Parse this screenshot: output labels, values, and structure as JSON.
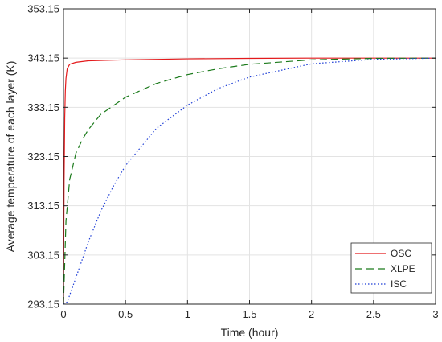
{
  "chart_data": {
    "type": "line",
    "xlabel": "Time (hour)",
    "ylabel": "Average temperature of each layer (K)",
    "xlim": [
      0,
      3
    ],
    "ylim": [
      293.15,
      353.15
    ],
    "xticks": [
      0,
      0.5,
      1,
      1.5,
      2,
      2.5,
      3
    ],
    "xtick_labels": [
      "0",
      "0.5",
      "1",
      "1.5",
      "2",
      "2.5",
      "3"
    ],
    "yticks": [
      293.15,
      303.15,
      313.15,
      323.15,
      333.15,
      343.15,
      353.15
    ],
    "ytick_labels": [
      "293.15",
      "303.15",
      "313.15",
      "323.15",
      "333.15",
      "343.15",
      "353.15"
    ],
    "grid": true,
    "legend_position": "bottom-right",
    "series": [
      {
        "name": "OSC",
        "color": "#e41a1c",
        "dash": "solid",
        "x": [
          0,
          0.005,
          0.01,
          0.015,
          0.02,
          0.03,
          0.05,
          0.1,
          0.2,
          0.5,
          1,
          1.5,
          2,
          2.5,
          3
        ],
        "y": [
          293.15,
          318.0,
          331.0,
          336.5,
          339.0,
          341.0,
          341.9,
          342.3,
          342.6,
          342.8,
          343.0,
          343.1,
          343.15,
          343.15,
          343.15
        ]
      },
      {
        "name": "XLPE",
        "color": "#1b7a1b",
        "dash": "dashed",
        "x": [
          0,
          0.02,
          0.05,
          0.1,
          0.15,
          0.2,
          0.3,
          0.5,
          0.75,
          1,
          1.25,
          1.5,
          2,
          2.5,
          3
        ],
        "y": [
          293.15,
          310.0,
          318.5,
          323.8,
          326.5,
          328.6,
          331.7,
          335.2,
          338.0,
          339.8,
          341.0,
          341.9,
          342.8,
          343.1,
          343.15
        ]
      },
      {
        "name": "ISC",
        "color": "#1f3fd6",
        "dash": "dotted",
        "x": [
          0,
          0.03,
          0.05,
          0.1,
          0.2,
          0.3,
          0.4,
          0.5,
          0.75,
          1,
          1.25,
          1.5,
          2,
          2.5,
          3
        ],
        "y": [
          293.15,
          293.6,
          295.0,
          298.5,
          305.8,
          312.0,
          317.0,
          321.3,
          328.9,
          333.6,
          337.0,
          339.3,
          342.0,
          342.9,
          343.15
        ]
      }
    ]
  }
}
